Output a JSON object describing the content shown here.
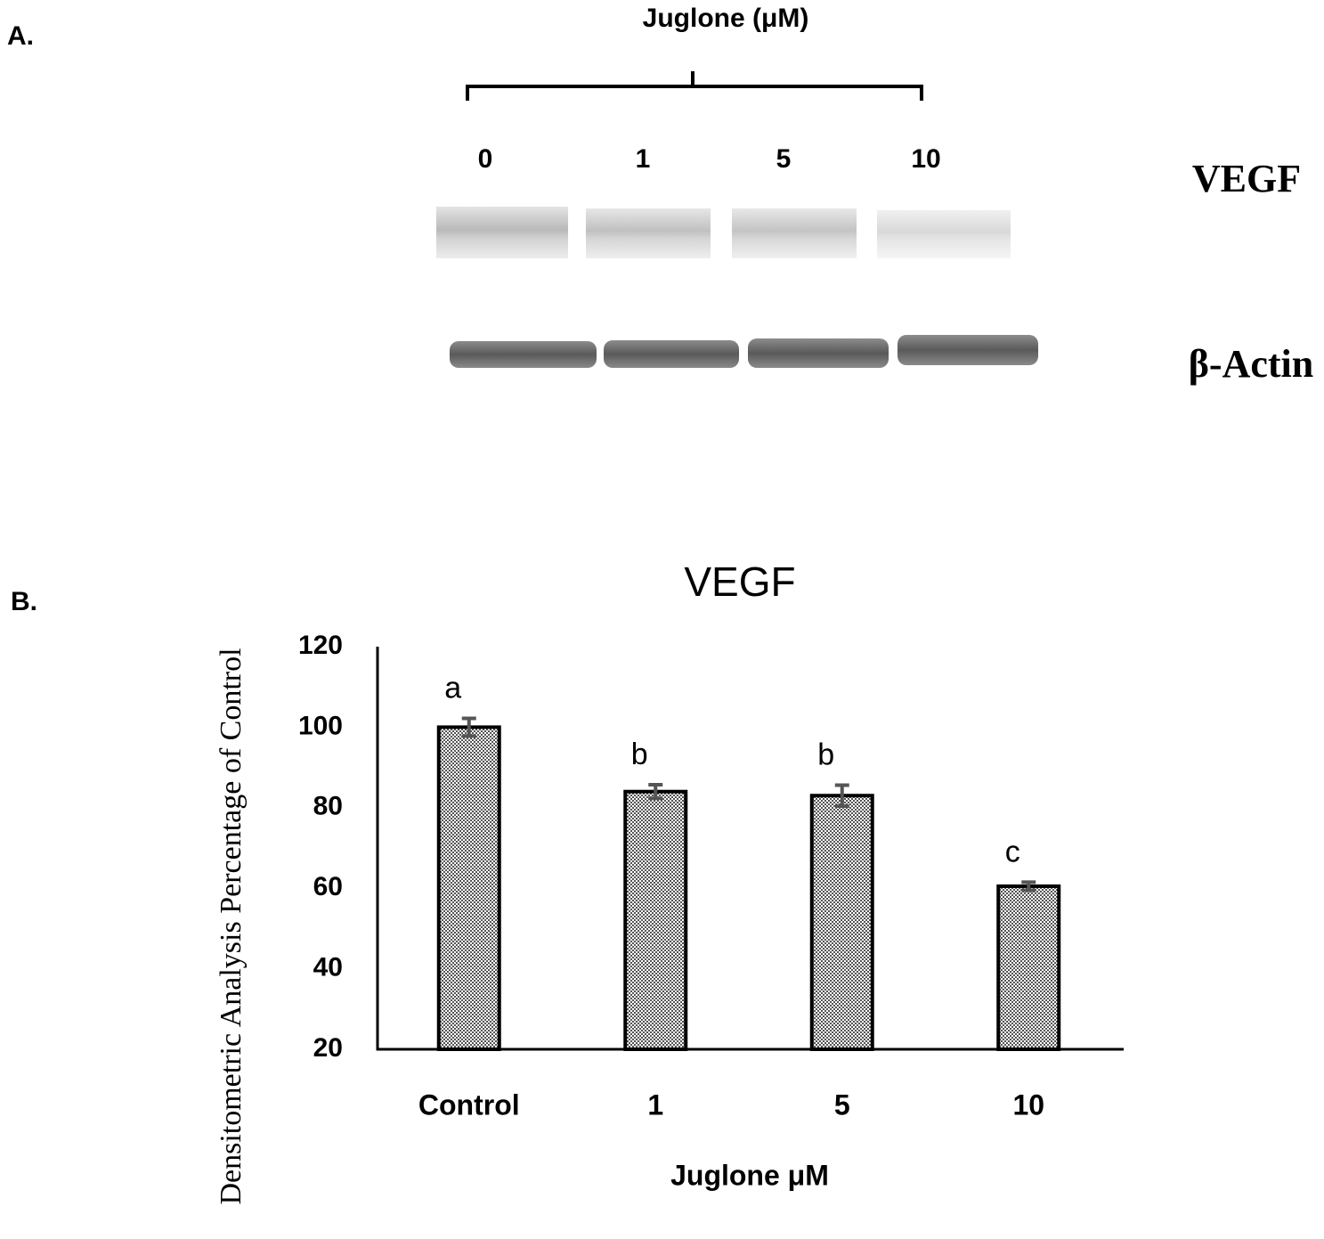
{
  "panel_a": {
    "label": "A.",
    "title": "Juglone (μM)",
    "lanes": [
      "0",
      "1",
      "5",
      "10"
    ],
    "bands": [
      "VEGF",
      "β-Actin"
    ]
  },
  "chart_data": {
    "type": "bar",
    "panel_label": "B.",
    "title": "VEGF",
    "xlabel": "Juglone μM",
    "ylabel": "Densitometric Analysis Percentage of Control",
    "categories": [
      "Control",
      "1",
      "5",
      "10"
    ],
    "values": [
      100,
      84,
      83,
      60.5
    ],
    "errors": [
      2.2,
      1.7,
      2.6,
      1
    ],
    "annotations": [
      "a",
      "b",
      "b",
      "c"
    ],
    "color": "#555555",
    "ylim": [
      20,
      120
    ],
    "yticks": [
      20,
      40,
      60,
      80,
      100,
      120
    ],
    "grid": false
  }
}
